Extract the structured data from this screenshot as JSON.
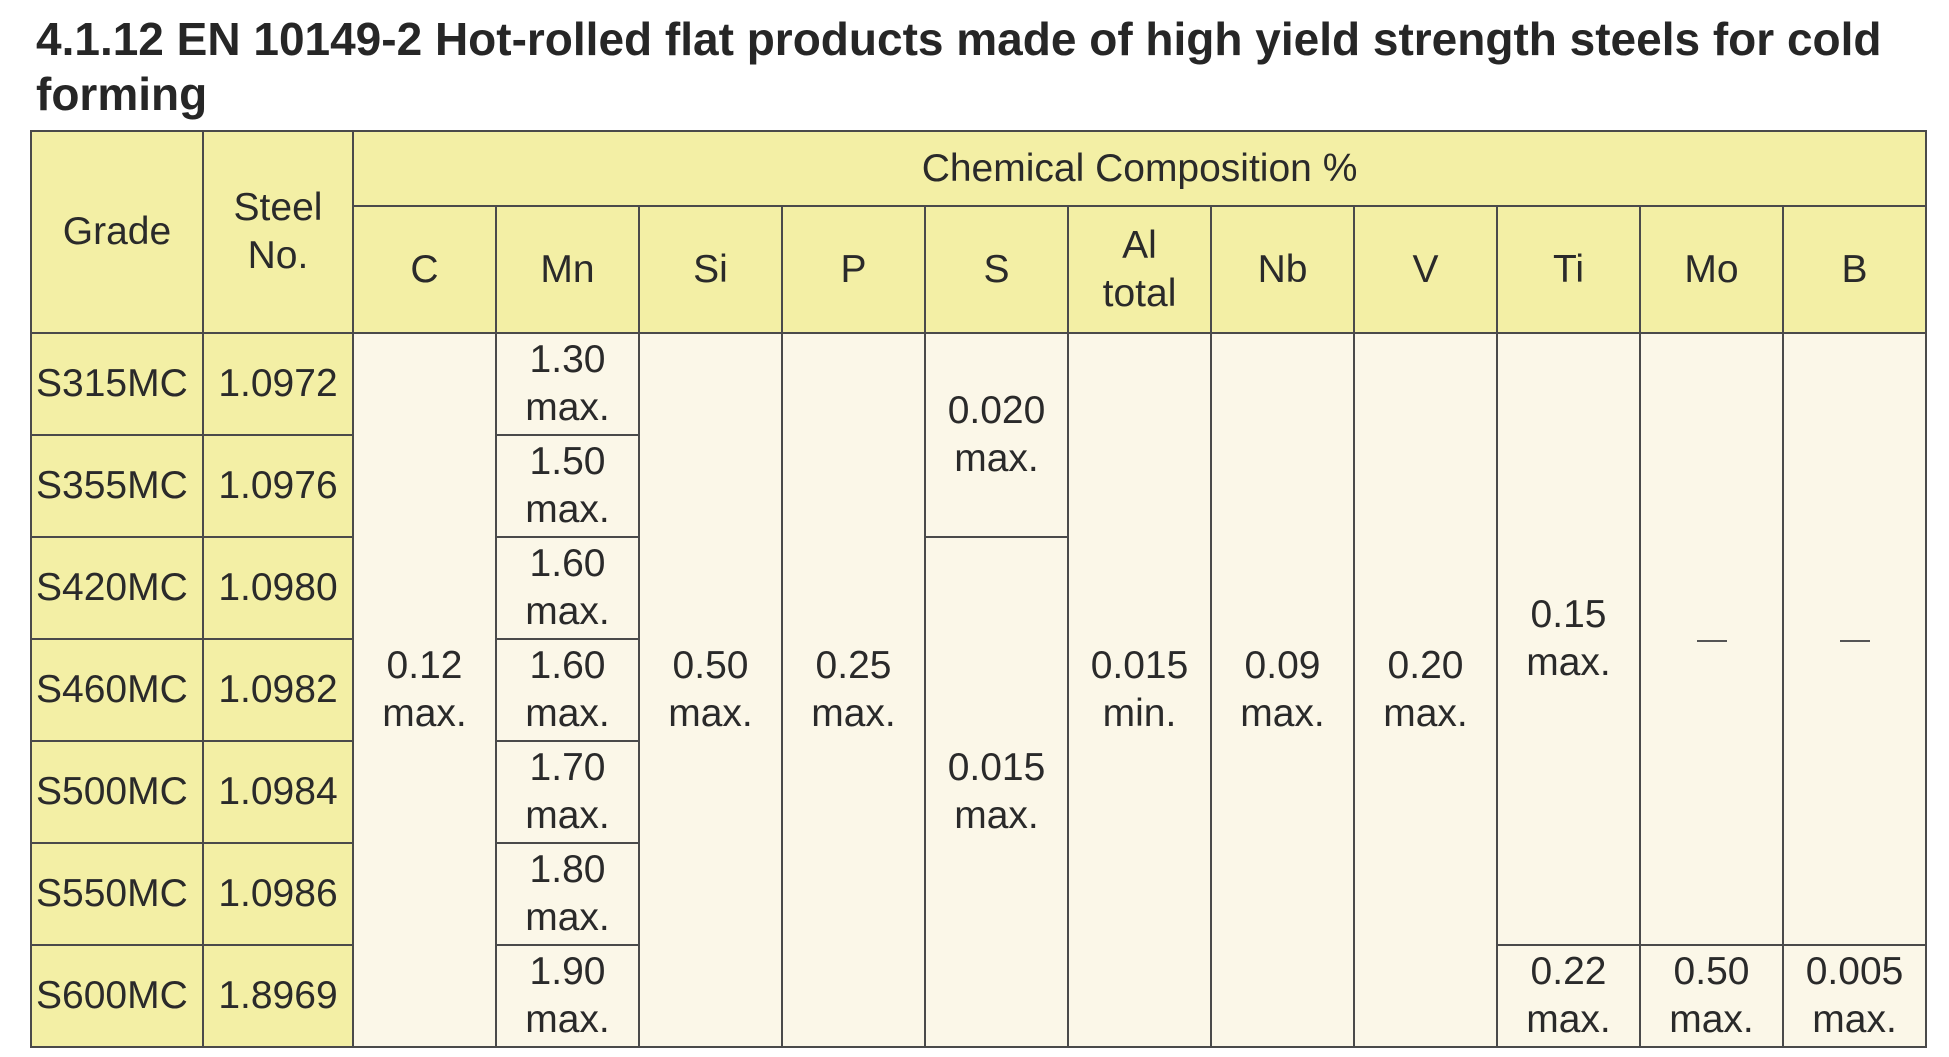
{
  "title": "4.1.12 EN 10149-2 Hot-rolled flat products made of high yield strength steels for cold forming",
  "table": {
    "header": {
      "grade": "Grade",
      "steel_no_line1": "Steel",
      "steel_no_line2": "No.",
      "group": "Chemical Composition %",
      "c": "C",
      "mn": "Mn",
      "si": "Si",
      "p": "P",
      "s": "S",
      "al_line1": "Al",
      "al_line2": "total",
      "nb": "Nb",
      "v": "V",
      "ti": "Ti",
      "mo": "Mo",
      "b": "B"
    },
    "rows": [
      {
        "grade": "S315MC",
        "steel_no": "1.0972",
        "mn_value": "1.30",
        "mn_limit": "max."
      },
      {
        "grade": "S355MC",
        "steel_no": "1.0976",
        "mn_value": "1.50",
        "mn_limit": "max."
      },
      {
        "grade": "S420MC",
        "steel_no": "1.0980",
        "mn_value": "1.60",
        "mn_limit": "max."
      },
      {
        "grade": "S460MC",
        "steel_no": "1.0982",
        "mn_value": "1.60",
        "mn_limit": "max."
      },
      {
        "grade": "S500MC",
        "steel_no": "1.0984",
        "mn_value": "1.70",
        "mn_limit": "max."
      },
      {
        "grade": "S550MC",
        "steel_no": "1.0986",
        "mn_value": "1.80",
        "mn_limit": "max."
      },
      {
        "grade": "S600MC",
        "steel_no": "1.8969",
        "mn_value": "1.90",
        "mn_limit": "max."
      }
    ],
    "merged": {
      "c_value": "0.12",
      "c_limit": "max.",
      "si_value": "0.50",
      "si_limit": "max.",
      "p_value": "0.25",
      "p_limit": "max.",
      "s_top_value": "0.020",
      "s_top_limit": "max.",
      "s_bottom_value": "0.015",
      "s_bottom_limit": "max.",
      "al_value": "0.015",
      "al_limit": "min.",
      "nb_value": "0.09",
      "nb_limit": "max.",
      "v_value": "0.20",
      "v_limit": "max.",
      "ti_top_value": "0.15",
      "ti_top_limit": "max.",
      "ti_bottom_value": "0.22",
      "ti_bottom_limit": "max.",
      "mo_bottom_value": "0.50",
      "mo_bottom_limit": "max.",
      "b_bottom_value": "0.005",
      "b_bottom_limit": "max."
    },
    "colors": {
      "header_yellow": "#f3efa5",
      "body_cream": "#fbf7e8",
      "grid": "#4a4a4a"
    }
  }
}
